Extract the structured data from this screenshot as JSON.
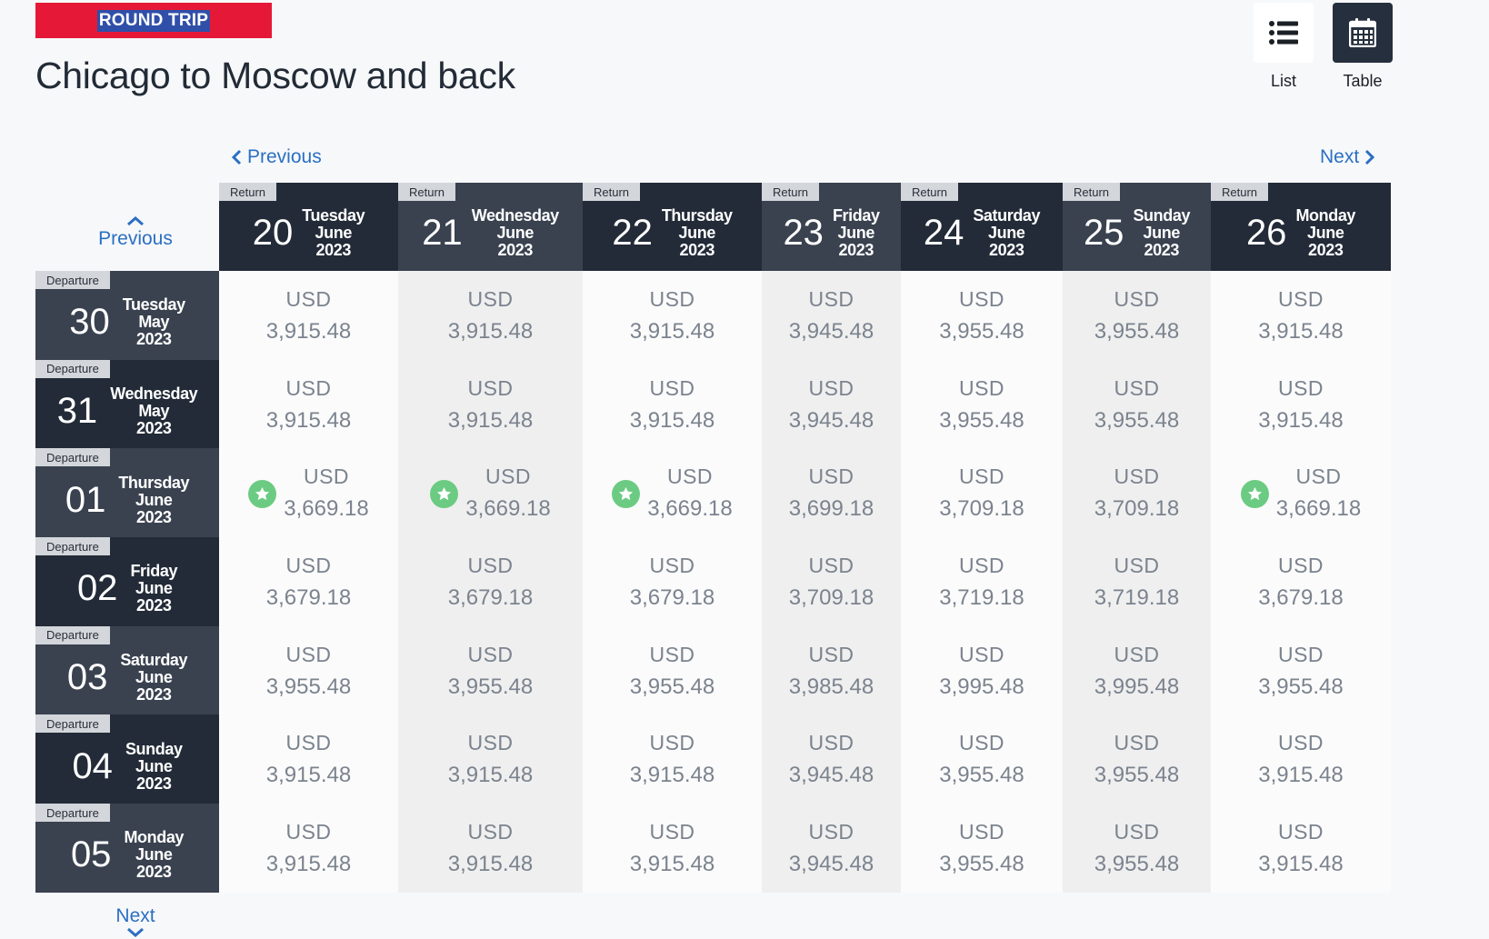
{
  "badge": "ROUND TRIP",
  "title": "Chicago to Moscow and back",
  "view": {
    "list_label": "List",
    "table_label": "Table",
    "list_icon": "list-icon",
    "table_icon": "calendar-icon"
  },
  "nav": {
    "prev_label": "Previous",
    "next_label": "Next"
  },
  "colors": {
    "brand_red": "#e51937",
    "header_dark": "#232b38",
    "header_mid": "#3a4250",
    "link_blue": "#2b6fc2",
    "best_green": "#6ccb82"
  },
  "return_tag": "Return",
  "departure_tag": "Departure",
  "returns": [
    {
      "day": "20",
      "weekday": "Tuesday",
      "month": "June",
      "year": "2023"
    },
    {
      "day": "21",
      "weekday": "Wednesday",
      "month": "June",
      "year": "2023"
    },
    {
      "day": "22",
      "weekday": "Thursday",
      "month": "June",
      "year": "2023"
    },
    {
      "day": "23",
      "weekday": "Friday",
      "month": "June",
      "year": "2023"
    },
    {
      "day": "24",
      "weekday": "Saturday",
      "month": "June",
      "year": "2023"
    },
    {
      "day": "25",
      "weekday": "Sunday",
      "month": "June",
      "year": "2023"
    },
    {
      "day": "26",
      "weekday": "Monday",
      "month": "June",
      "year": "2023"
    }
  ],
  "departures": [
    {
      "day": "30",
      "weekday": "Tuesday",
      "month": "May",
      "year": "2023",
      "prices": [
        {
          "currency": "USD",
          "amount": "3,915.48",
          "best": false
        },
        {
          "currency": "USD",
          "amount": "3,915.48",
          "best": false
        },
        {
          "currency": "USD",
          "amount": "3,915.48",
          "best": false
        },
        {
          "currency": "USD",
          "amount": "3,945.48",
          "best": false
        },
        {
          "currency": "USD",
          "amount": "3,955.48",
          "best": false
        },
        {
          "currency": "USD",
          "amount": "3,955.48",
          "best": false
        },
        {
          "currency": "USD",
          "amount": "3,915.48",
          "best": false
        }
      ]
    },
    {
      "day": "31",
      "weekday": "Wednesday",
      "month": "May",
      "year": "2023",
      "prices": [
        {
          "currency": "USD",
          "amount": "3,915.48",
          "best": false
        },
        {
          "currency": "USD",
          "amount": "3,915.48",
          "best": false
        },
        {
          "currency": "USD",
          "amount": "3,915.48",
          "best": false
        },
        {
          "currency": "USD",
          "amount": "3,945.48",
          "best": false
        },
        {
          "currency": "USD",
          "amount": "3,955.48",
          "best": false
        },
        {
          "currency": "USD",
          "amount": "3,955.48",
          "best": false
        },
        {
          "currency": "USD",
          "amount": "3,915.48",
          "best": false
        }
      ]
    },
    {
      "day": "01",
      "weekday": "Thursday",
      "month": "June",
      "year": "2023",
      "prices": [
        {
          "currency": "USD",
          "amount": "3,669.18",
          "best": true
        },
        {
          "currency": "USD",
          "amount": "3,669.18",
          "best": true
        },
        {
          "currency": "USD",
          "amount": "3,669.18",
          "best": true
        },
        {
          "currency": "USD",
          "amount": "3,699.18",
          "best": false
        },
        {
          "currency": "USD",
          "amount": "3,709.18",
          "best": false
        },
        {
          "currency": "USD",
          "amount": "3,709.18",
          "best": false
        },
        {
          "currency": "USD",
          "amount": "3,669.18",
          "best": true
        }
      ]
    },
    {
      "day": "02",
      "weekday": "Friday",
      "month": "June",
      "year": "2023",
      "prices": [
        {
          "currency": "USD",
          "amount": "3,679.18",
          "best": false
        },
        {
          "currency": "USD",
          "amount": "3,679.18",
          "best": false
        },
        {
          "currency": "USD",
          "amount": "3,679.18",
          "best": false
        },
        {
          "currency": "USD",
          "amount": "3,709.18",
          "best": false
        },
        {
          "currency": "USD",
          "amount": "3,719.18",
          "best": false
        },
        {
          "currency": "USD",
          "amount": "3,719.18",
          "best": false
        },
        {
          "currency": "USD",
          "amount": "3,679.18",
          "best": false
        }
      ]
    },
    {
      "day": "03",
      "weekday": "Saturday",
      "month": "June",
      "year": "2023",
      "prices": [
        {
          "currency": "USD",
          "amount": "3,955.48",
          "best": false
        },
        {
          "currency": "USD",
          "amount": "3,955.48",
          "best": false
        },
        {
          "currency": "USD",
          "amount": "3,955.48",
          "best": false
        },
        {
          "currency": "USD",
          "amount": "3,985.48",
          "best": false
        },
        {
          "currency": "USD",
          "amount": "3,995.48",
          "best": false
        },
        {
          "currency": "USD",
          "amount": "3,995.48",
          "best": false
        },
        {
          "currency": "USD",
          "amount": "3,955.48",
          "best": false
        }
      ]
    },
    {
      "day": "04",
      "weekday": "Sunday",
      "month": "June",
      "year": "2023",
      "prices": [
        {
          "currency": "USD",
          "amount": "3,915.48",
          "best": false
        },
        {
          "currency": "USD",
          "amount": "3,915.48",
          "best": false
        },
        {
          "currency": "USD",
          "amount": "3,915.48",
          "best": false
        },
        {
          "currency": "USD",
          "amount": "3,945.48",
          "best": false
        },
        {
          "currency": "USD",
          "amount": "3,955.48",
          "best": false
        },
        {
          "currency": "USD",
          "amount": "3,955.48",
          "best": false
        },
        {
          "currency": "USD",
          "amount": "3,915.48",
          "best": false
        }
      ]
    },
    {
      "day": "05",
      "weekday": "Monday",
      "month": "June",
      "year": "2023",
      "prices": [
        {
          "currency": "USD",
          "amount": "3,915.48",
          "best": false
        },
        {
          "currency": "USD",
          "amount": "3,915.48",
          "best": false
        },
        {
          "currency": "USD",
          "amount": "3,915.48",
          "best": false
        },
        {
          "currency": "USD",
          "amount": "3,945.48",
          "best": false
        },
        {
          "currency": "USD",
          "amount": "3,955.48",
          "best": false
        },
        {
          "currency": "USD",
          "amount": "3,955.48",
          "best": false
        },
        {
          "currency": "USD",
          "amount": "3,915.48",
          "best": false
        }
      ]
    }
  ]
}
